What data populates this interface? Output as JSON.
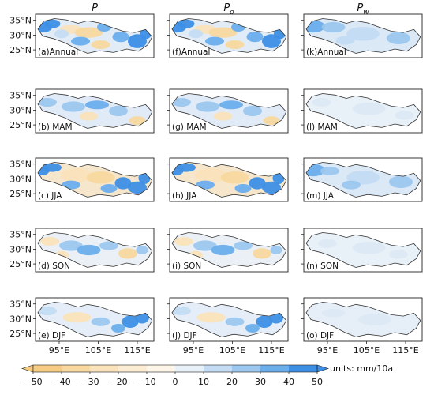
{
  "figure": {
    "columns": [
      {
        "symbol": "P",
        "subscript": ""
      },
      {
        "symbol": "P",
        "subscript": "o"
      },
      {
        "symbol": "P",
        "subscript": "w"
      }
    ],
    "seasons": [
      "Annual",
      "MAM",
      "JJA",
      "SON",
      "DJF"
    ],
    "panel_labels": [
      [
        "(a)Annual",
        "(f)Annual",
        "(k)Annual"
      ],
      [
        "(b) MAM",
        "(g) MAM",
        "(l) MAM"
      ],
      [
        "(c) JJA",
        "(h) JJA",
        "(m) JJA"
      ],
      [
        "(d) SON",
        "(i) SON",
        "(n) SON"
      ],
      [
        "(e) DJF",
        "(j) DJF",
        "(o) DJF"
      ]
    ],
    "lat_ticks": [
      "35°N",
      "30°N",
      "25°N"
    ],
    "lon_ticks": [
      "95°E",
      "105°E",
      "115°E"
    ],
    "colorbar": {
      "ticks": [
        "−50",
        "−40",
        "−30",
        "−20",
        "−10",
        "0",
        "10",
        "20",
        "30",
        "40",
        "50"
      ],
      "units": "units: mm/10a",
      "colors": [
        "#f5cc82",
        "#f8d89e",
        "#fae3bb",
        "#fcecd2",
        "#fdf5e8",
        "#e8f0f8",
        "#c4dcf3",
        "#9cc7ee",
        "#6aaeec",
        "#3d8fe6"
      ]
    }
  }
}
